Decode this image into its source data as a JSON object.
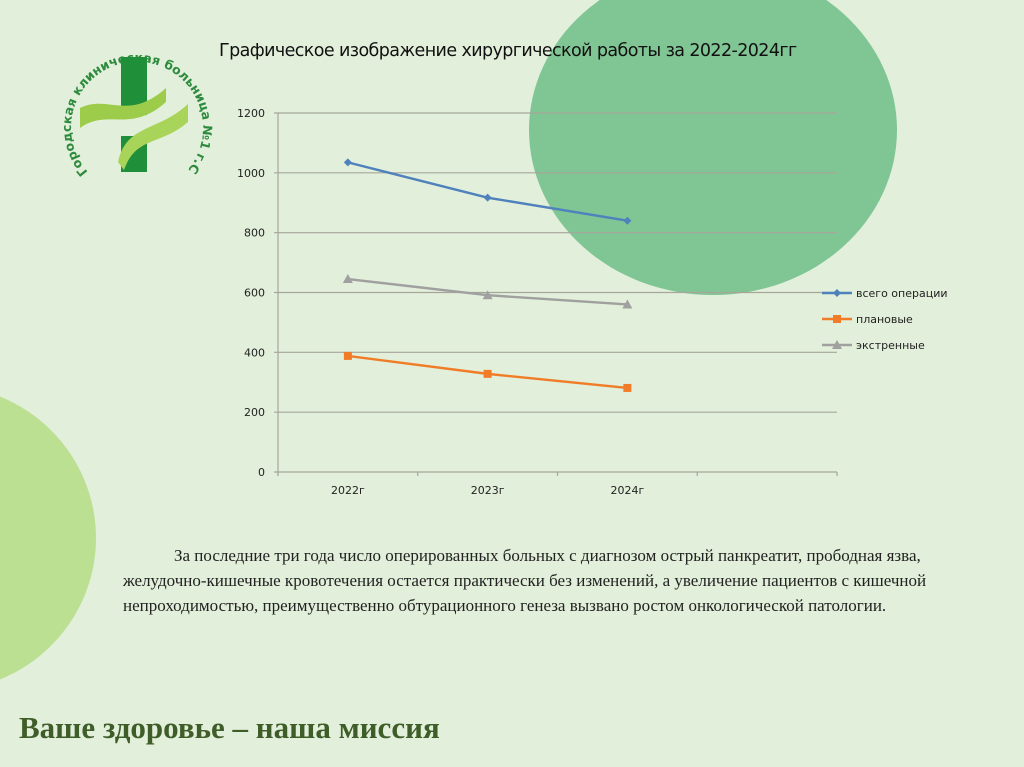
{
  "slide": {
    "title": "Графическое изображение хирургической работы за 2022-2024гг",
    "logo": {
      "ring_text": "Городская клиническая больница №1 г.Стерлитамак",
      "icon": "medical-cross-icon"
    },
    "body_text": "За последние три года число оперированных больных  с диагнозом острый панкреатит, прободная язва, желудочно-кишечные кровотечения   остается практически без изменений, а увеличение пациентов с кишечной непроходимостью, преимущественно обтурационного генеза вызвано ростом онкологической патологии.",
    "footer": "Ваше здоровье – наша миссия",
    "colors": {
      "background": "#e2efda",
      "big_circle": "#80c594",
      "left_circle": "#bbe091",
      "footer_text": "#3f5d28"
    }
  },
  "chart_data": {
    "type": "line",
    "title": "Графическое изображение хирургической работы за 2022-2024гг",
    "xlabel": "",
    "ylabel": "",
    "categories": [
      "2022г",
      "2023г",
      "2024г",
      ""
    ],
    "ylim": [
      0,
      1200
    ],
    "yticks": [
      0,
      200,
      400,
      600,
      800,
      1000,
      1200
    ],
    "grid": true,
    "legend_position": "right",
    "series": [
      {
        "name": "всего операции",
        "values": [
          1035,
          917,
          840
        ],
        "color": "#4f81bd",
        "marker": "diamond"
      },
      {
        "name": "плановые",
        "values": [
          388,
          328,
          281
        ],
        "color": "#f07c28",
        "marker": "square"
      },
      {
        "name": "экстренные",
        "values": [
          645,
          591,
          560
        ],
        "color": "#a0a0a0",
        "marker": "triangle"
      }
    ]
  }
}
